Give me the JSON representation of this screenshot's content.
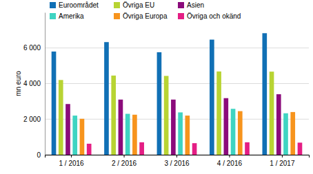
{
  "chart_data": {
    "type": "bar",
    "y_label": "mn euro",
    "categories": [
      "1 / 2016",
      "2 / 2016",
      "3 / 2016",
      "4 / 2016",
      "1 / 2017"
    ],
    "series": [
      {
        "name": "Euroområdet",
        "color": "#1170b5",
        "values": [
          5800,
          6330,
          5760,
          6470,
          6830
        ]
      },
      {
        "name": "Övriga EU",
        "color": "#b8d433",
        "values": [
          4200,
          4450,
          4430,
          4680,
          4670
        ]
      },
      {
        "name": "Asien",
        "color": "#8b0b7b",
        "values": [
          2850,
          3100,
          3100,
          3180,
          3400
        ]
      },
      {
        "name": "Amerika",
        "color": "#3fd4c2",
        "values": [
          2200,
          2300,
          2380,
          2580,
          2330
        ]
      },
      {
        "name": "Övriga Europa",
        "color": "#f7941d",
        "values": [
          2020,
          2250,
          2200,
          2450,
          2400
        ]
      },
      {
        "name": "Övriga och okänd",
        "color": "#e41e84",
        "values": [
          620,
          700,
          650,
          700,
          680
        ]
      }
    ],
    "ylim": [
      0,
      8000
    ],
    "yticks": [
      0,
      {
        "value": 2000,
        "label": "2 000"
      },
      {
        "value": 4000,
        "label": "4 000"
      },
      {
        "value": 6000,
        "label": "6 000"
      }
    ],
    "grid": true,
    "legend": "top-left"
  }
}
